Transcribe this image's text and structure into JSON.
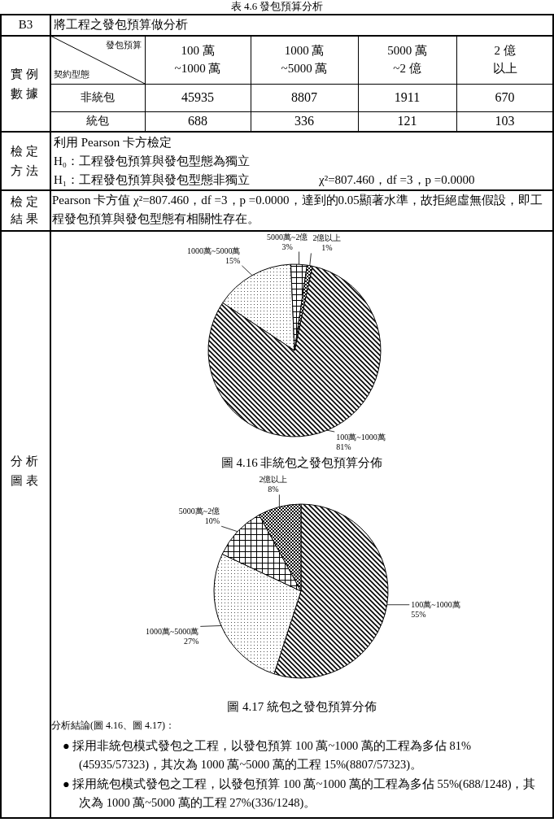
{
  "chart_data": [
    {
      "type": "other",
      "title": "表 4.6 發包預算分析",
      "annotations": [
        "B3",
        "將工程之發包預算做分析",
        "實例數據",
        "發包預算",
        "契約型態",
        "100 萬\n~1000 萬",
        "1000 萬\n~5000 萬",
        "5000 萬\n~2 億",
        "2 億以上",
        "非統包",
        "45935",
        "8807",
        "1911",
        "670",
        "統包",
        "688",
        "336",
        "121",
        "103",
        "檢定方法",
        "利用 Pearson 卡方檢定",
        "H₀：工程發包預算與發包型態為獨立",
        "H₁：工程發包預算與發包型態非獨立",
        "χ²=807.460，df =3，p =0.0000",
        "檢定結果",
        "Pearson 卡方值 χ²=807.460，df =3，p =0.0000，達到的0.05顯著水準，故拒絕虛無假設，即工程發包預算與發包型態有相關性存在。",
        "分析圖表"
      ]
    },
    {
      "type": "pie",
      "title": "圖 4.16 非統包之發包預算分佈",
      "categories": [
        "100萬~1000萬",
        "1000萬~5000萬",
        "5000萬~2億",
        "2億以上"
      ],
      "values": [
        81,
        15,
        3,
        1
      ],
      "value_labels": [
        "81%",
        "15%",
        "3%",
        "1%"
      ],
      "colors": [
        "#000000",
        "#000000",
        "#000000",
        "#000000"
      ]
    },
    {
      "type": "pie",
      "title": "圖 4.17 統包之發包預算分佈",
      "categories": [
        "100萬~1000萬",
        "1000萬~5000萬",
        "5000萬~2億",
        "2億以上"
      ],
      "values": [
        55,
        27,
        10,
        8
      ],
      "value_labels": [
        "55%",
        "27%",
        "10%",
        "8%"
      ],
      "colors": [
        "#000000",
        "#000000",
        "#000000",
        "#000000"
      ]
    },
    {
      "type": "other",
      "title": "分析結論(圖 4.16、圖 4.17)：",
      "annotations": [
        "● 採用非統包模式發包之工程，以發包預算 100 萬~1000 萬的工程為多佔 81%(45935/57323)，其次為 1000 萬~5000 萬的工程 15%(8807/57323)。",
        "● 採用統包模式發包之工程，以發包預算 100 萬~1000 萬的工程為多佔 55%(688/1248)，其次為 1000 萬~5000 萬的工程 27%(336/1248)。"
      ]
    }
  ]
}
